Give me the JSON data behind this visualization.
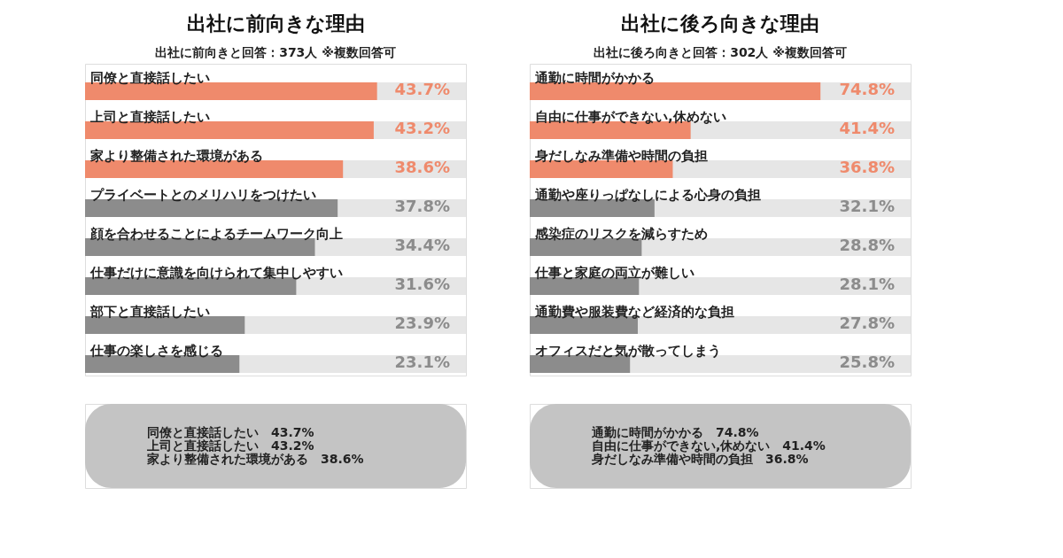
{
  "chart_data": [
    {
      "type": "bar",
      "orientation": "horizontal",
      "title": "出社に前向きな理由",
      "subtitle": "出社に前向きと回答：373人 ※複数回答可",
      "categories": [
        "同僚と直接話したい",
        "上司と直接話したい",
        "家より整備された環境がある",
        "プライベートとのメリハリをつけたい",
        "顔を合わせることによるチームワーク向上",
        "仕事だけに意識を向けられて集中しやすい",
        "部下と直接話したい",
        "仕事の楽しさを感じる"
      ],
      "values": [
        43.7,
        43.2,
        38.6,
        37.8,
        34.4,
        31.6,
        23.9,
        23.1
      ],
      "value_labels": [
        "43.7%",
        "43.2%",
        "38.6%",
        "37.8%",
        "34.4%",
        "31.6%",
        "23.9%",
        "23.1%"
      ],
      "colors": [
        "#ef8a6c",
        "#ef8a6c",
        "#ef8a6c",
        "#8c8c8c",
        "#8c8c8c",
        "#8c8c8c",
        "#8c8c8c",
        "#8c8c8c"
      ],
      "xlim": [
        0,
        57
      ],
      "tick_labels": false,
      "annotations": [
        "同僚と直接話したい　43.7%",
        "上司と直接話したい　43.2%",
        "家より整備された環境がある　38.6%"
      ]
    },
    {
      "type": "bar",
      "orientation": "horizontal",
      "title": "出社に後ろ向きな理由",
      "subtitle": "出社に後ろ向きと回答：302人 ※複数回答可",
      "categories": [
        "通勤に時間がかかる",
        "自由に仕事ができない,休めない",
        "身だしなみ準備や時間の負担",
        "通勤や座りっぱなしによる心身の負担",
        "感染症のリスクを減らすため",
        "仕事と家庭の両立が難しい",
        "通勤費や服装費など経済的な負担",
        "オフィスだと気が散ってしまう"
      ],
      "values": [
        74.8,
        41.4,
        36.8,
        32.1,
        28.8,
        28.1,
        27.8,
        25.8
      ],
      "value_labels": [
        "74.8%",
        "41.4%",
        "36.8%",
        "32.1%",
        "28.8%",
        "28.1%",
        "27.8%",
        "25.8%"
      ],
      "colors": [
        "#ef8a6c",
        "#ef8a6c",
        "#ef8a6c",
        "#8c8c8c",
        "#8c8c8c",
        "#8c8c8c",
        "#8c8c8c",
        "#8c8c8c"
      ],
      "xlim": [
        0,
        98
      ],
      "tick_labels": false,
      "annotations": [
        "通勤に時間がかかる　74.8%",
        "自由に仕事ができない,休めない　41.4%",
        "身だしなみ準備や時間の負担　36.8%"
      ]
    }
  ]
}
